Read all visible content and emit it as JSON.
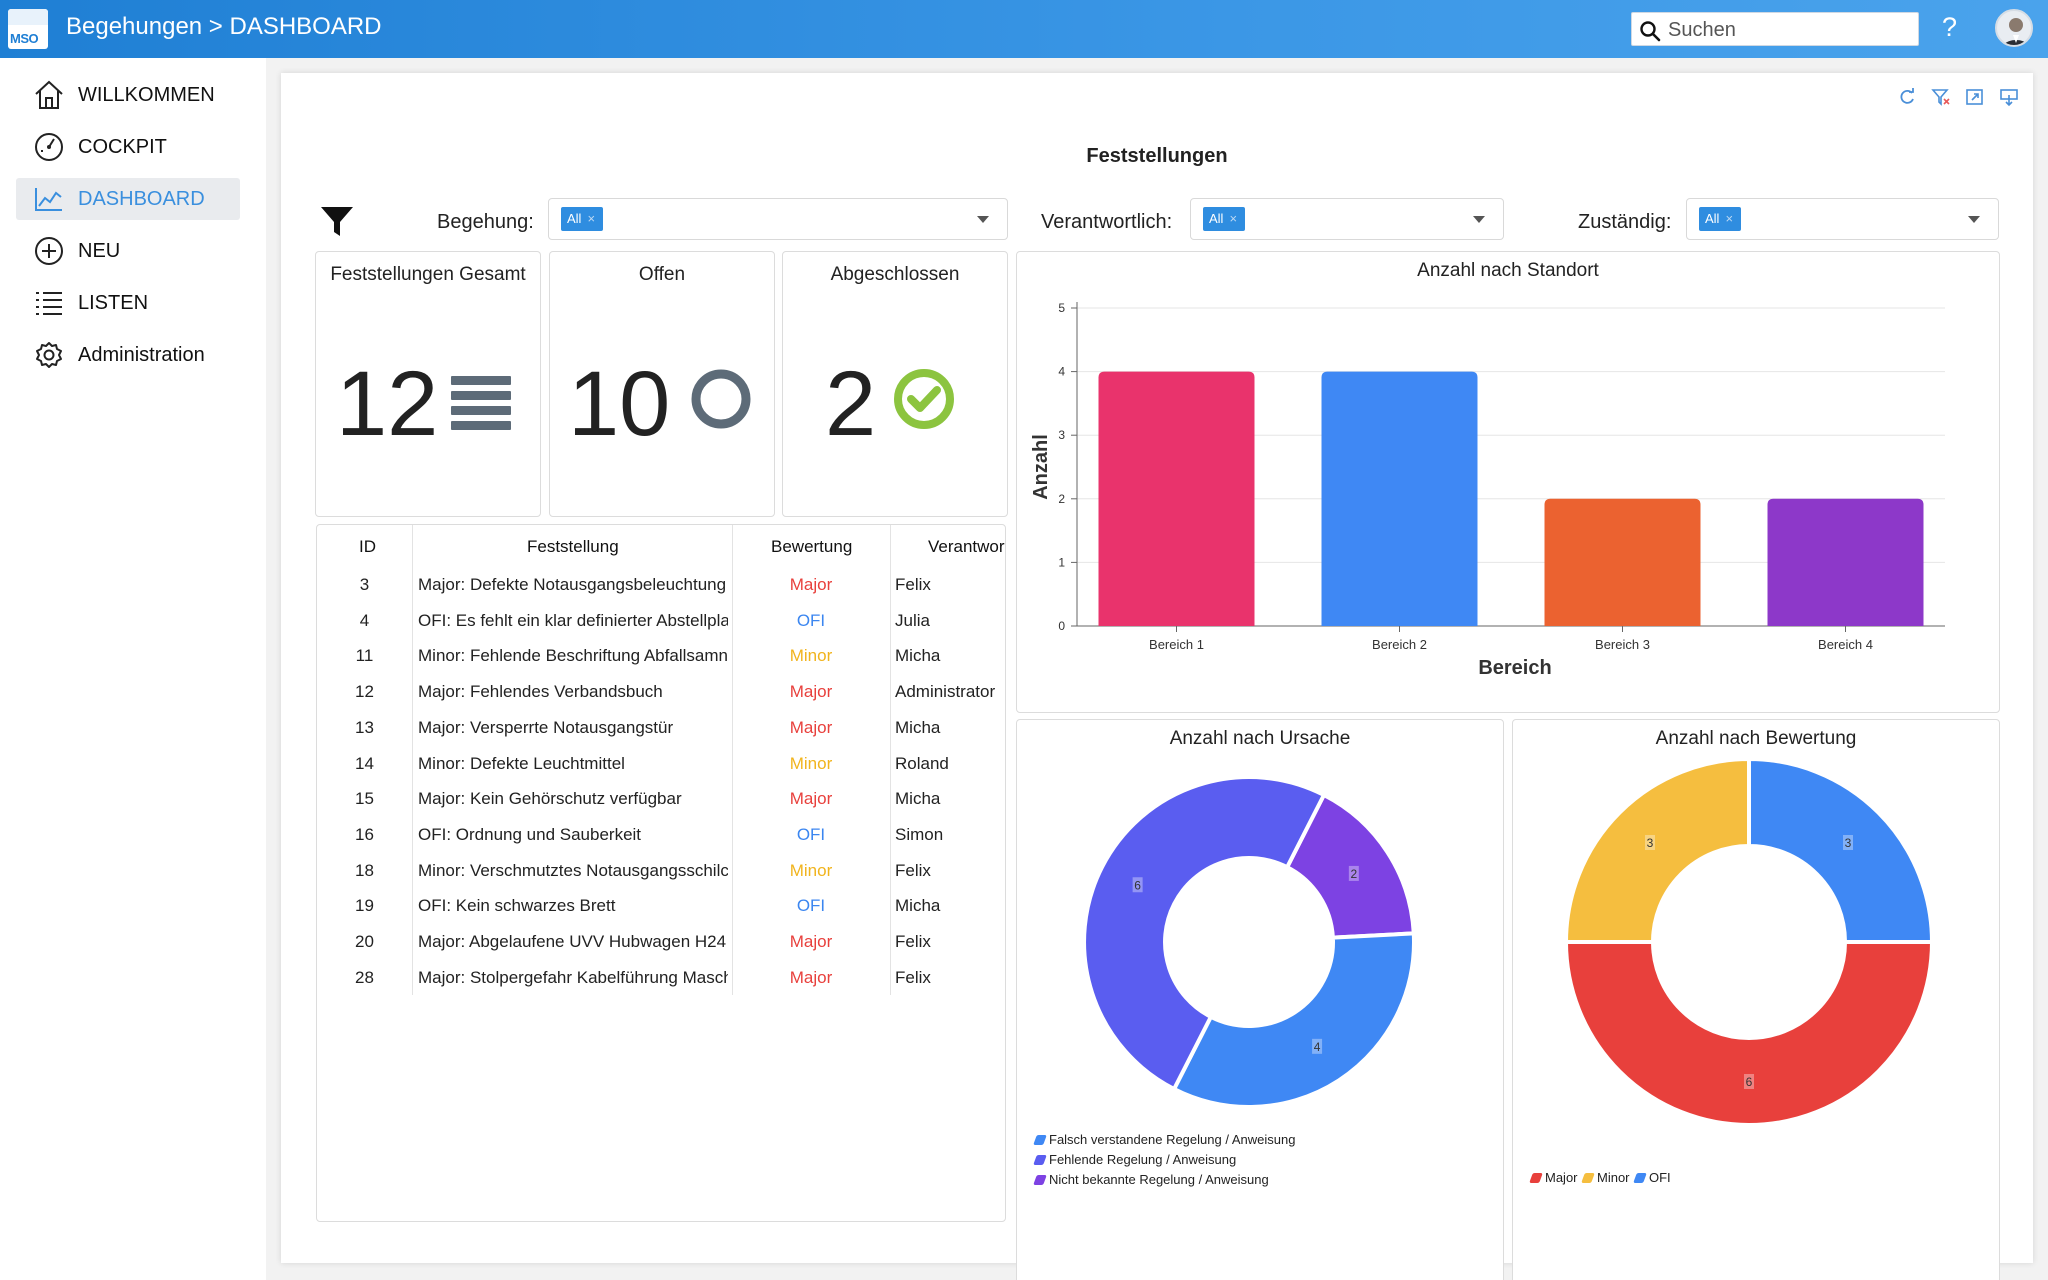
{
  "app": {
    "logo_text": "MSO",
    "title": "Begehungen > DASHBOARD",
    "search_placeholder": "Suchen",
    "help": "?"
  },
  "sidebar": {
    "items": [
      {
        "label": "WILLKOMMEN",
        "icon": "home-icon",
        "active": false
      },
      {
        "label": "COCKPIT",
        "icon": "speedometer-icon",
        "active": false
      },
      {
        "label": "DASHBOARD",
        "icon": "line-chart-icon",
        "active": true
      },
      {
        "label": "NEU",
        "icon": "plus-circle-icon",
        "active": false
      },
      {
        "label": "LISTEN",
        "icon": "list-icon",
        "active": false
      },
      {
        "label": "Administration",
        "icon": "gear-icon",
        "active": false
      }
    ]
  },
  "dashboard": {
    "title": "Feststellungen",
    "toolbar_icons": [
      "refresh-icon",
      "clear-filter-icon",
      "expand-icon",
      "export-icon"
    ],
    "filters": [
      {
        "label": "Begehung:",
        "chip": "All"
      },
      {
        "label": "Verantwortlich:",
        "chip": "All"
      },
      {
        "label": "Zuständig:",
        "chip": "All"
      }
    ],
    "kpis": [
      {
        "title": "Feststellungen Gesamt",
        "value": "12",
        "icon": "list-lines-icon"
      },
      {
        "title": "Offen",
        "value": "10",
        "icon": "circle-icon"
      },
      {
        "title": "Abgeschlossen",
        "value": "2",
        "icon": "check-circle-icon"
      }
    ],
    "table": {
      "columns": [
        "ID",
        "Feststellung",
        "Bewertung",
        "Verantwor"
      ],
      "rows": [
        {
          "id": "3",
          "text": "Major: Defekte Notausgangsbeleuchtung",
          "rating": "Major",
          "owner": "Felix"
        },
        {
          "id": "4",
          "text": "OFI: Es fehlt ein klar definierter Abstellpla",
          "rating": "OFI",
          "owner": "Julia"
        },
        {
          "id": "11",
          "text": "Minor: Fehlende Beschriftung Abfallsamn",
          "rating": "Minor",
          "owner": "Micha"
        },
        {
          "id": "12",
          "text": "Major: Fehlendes Verbandsbuch",
          "rating": "Major",
          "owner": "Administrator"
        },
        {
          "id": "13",
          "text": "Major: Versperrte Notausgangstür",
          "rating": "Major",
          "owner": "Micha"
        },
        {
          "id": "14",
          "text": "Minor: Defekte Leuchtmittel",
          "rating": "Minor",
          "owner": "Roland"
        },
        {
          "id": "15",
          "text": "Major: Kein Gehörschutz verfügbar",
          "rating": "Major",
          "owner": "Micha"
        },
        {
          "id": "16",
          "text": "OFI: Ordnung und Sauberkeit",
          "rating": "OFI",
          "owner": "Simon"
        },
        {
          "id": "18",
          "text": "Minor: Verschmutztes Notausgangsschilc",
          "rating": "Minor",
          "owner": "Felix"
        },
        {
          "id": "19",
          "text": "OFI: Kein schwarzes Brett",
          "rating": "OFI",
          "owner": "Micha"
        },
        {
          "id": "20",
          "text": "Major: Abgelaufene UVV Hubwagen H24",
          "rating": "Major",
          "owner": "Felix"
        },
        {
          "id": "28",
          "text": "Major: Stolpergefahr Kabelführung Masch",
          "rating": "Major",
          "owner": "Felix"
        }
      ]
    },
    "rating_colors": {
      "Major": "#e8403c",
      "Minor": "#f1b41d",
      "OFI": "#3b86f0"
    }
  },
  "chart_data": [
    {
      "type": "bar",
      "title": "Anzahl nach Standort",
      "xlabel": "Bereich",
      "ylabel": "Anzahl",
      "categories": [
        "Bereich 1",
        "Bereich 2",
        "Bereich 3",
        "Bereich 4"
      ],
      "values": [
        4,
        4,
        2,
        2
      ],
      "colors": [
        "#e9336c",
        "#3f88f4",
        "#eb6230",
        "#8d38c9"
      ],
      "ylim": [
        0,
        5
      ],
      "yticks": [
        "0",
        "1",
        "2",
        "3",
        "4",
        "5"
      ],
      "grid": true
    },
    {
      "type": "pie",
      "title": "Anzahl nach Ursache",
      "labels": [
        "Falsch verstandene Regelung / Anweisung",
        "Fehlende Regelung / Anweisung",
        "Nicht bekannte Regelung / Anweisung"
      ],
      "values": [
        4,
        6,
        2
      ],
      "value_labels": [
        "4",
        "6",
        "2"
      ],
      "colors": [
        "#3f88f4",
        "#5a5df0",
        "#7d42e3"
      ],
      "legend": "bottom-left"
    },
    {
      "type": "pie",
      "title": "Anzahl nach Bewertung",
      "labels": [
        "Major",
        "Minor",
        "OFI"
      ],
      "values": [
        6,
        3,
        3
      ],
      "value_labels": [
        "6",
        "3",
        "3"
      ],
      "colors": [
        "#e8403c",
        "#f5be3f",
        "#3f88f4"
      ],
      "legend": "bottom-left"
    }
  ]
}
